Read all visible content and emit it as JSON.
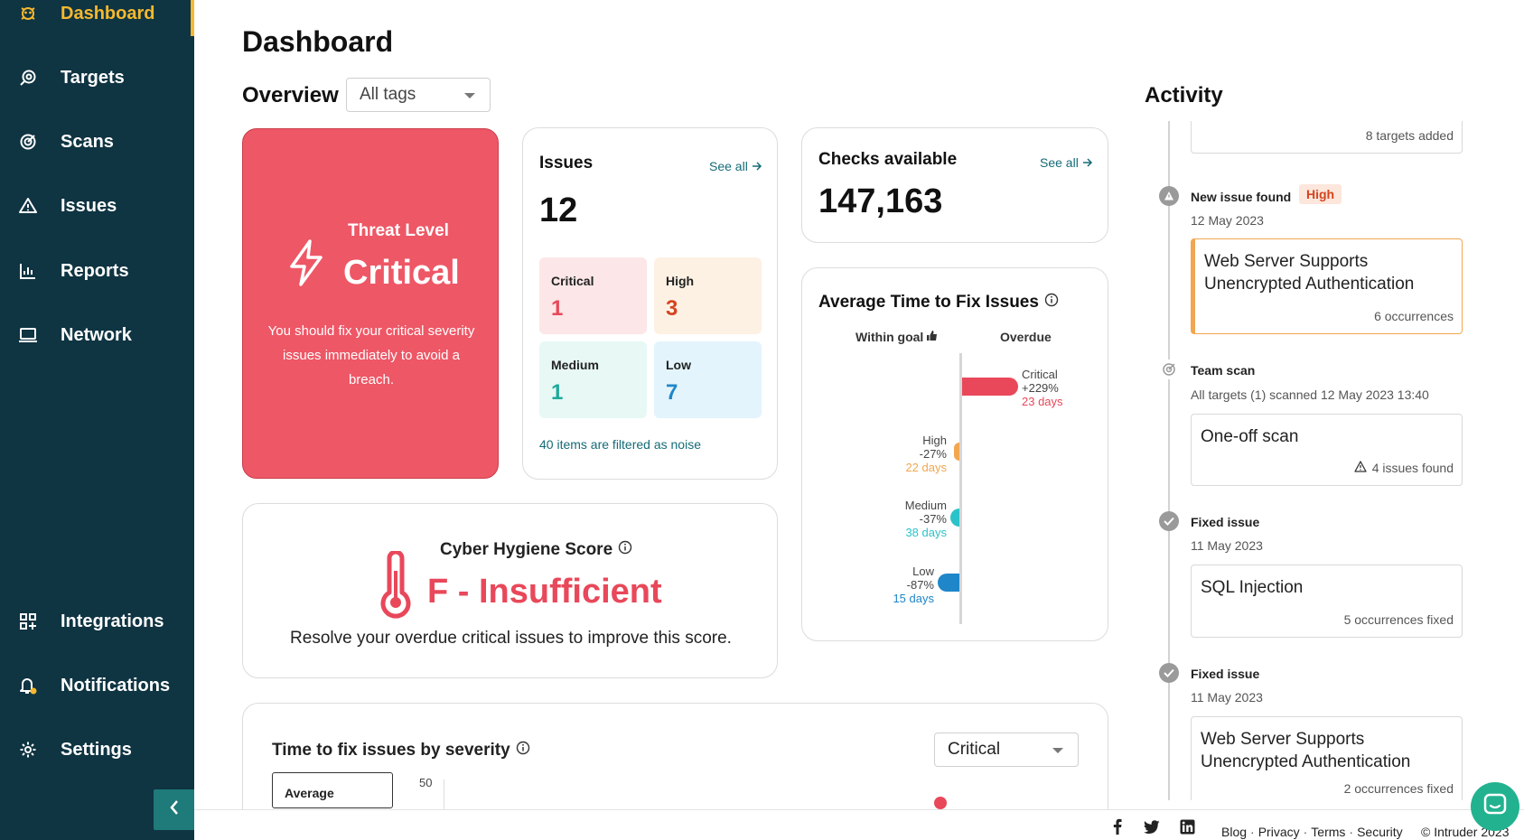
{
  "sidebar": {
    "items": [
      {
        "label": "Dashboard",
        "icon": "dashboard-icon"
      },
      {
        "label": "Targets",
        "icon": "targets-icon"
      },
      {
        "label": "Scans",
        "icon": "scans-icon"
      },
      {
        "label": "Issues",
        "icon": "warning-icon"
      },
      {
        "label": "Reports",
        "icon": "bar-chart-icon"
      },
      {
        "label": "Network",
        "icon": "laptop-icon"
      },
      {
        "label": "Integrations",
        "icon": "integrations-icon"
      },
      {
        "label": "Notifications",
        "icon": "bell-icon"
      },
      {
        "label": "Settings",
        "icon": "gear-icon"
      }
    ]
  },
  "page_title": "Dashboard",
  "overview": {
    "label": "Overview",
    "tags_value": "All tags"
  },
  "threat": {
    "heading": "Threat Level",
    "level": "Critical",
    "description": "You should fix your critical severity issues immediately to avoid a breach."
  },
  "issues": {
    "title": "Issues",
    "see_all": "See all",
    "total": "12",
    "critical_label": "Critical",
    "critical_count": "1",
    "high_label": "High",
    "high_count": "3",
    "medium_label": "Medium",
    "medium_count": "1",
    "low_label": "Low",
    "low_count": "7",
    "noise": "40 items are filtered as noise"
  },
  "checks": {
    "title": "Checks available",
    "see_all": "See all",
    "total": "147,163"
  },
  "avg_fix": {
    "title": "Average Time to Fix Issues",
    "within_goal": "Within goal",
    "overdue": "Overdue",
    "rows": [
      {
        "name": "Critical",
        "pct": "+229%",
        "days": "23 days"
      },
      {
        "name": "High",
        "pct": "-27%",
        "days": "22 days"
      },
      {
        "name": "Medium",
        "pct": "-37%",
        "days": "38 days"
      },
      {
        "name": "Low",
        "pct": "-87%",
        "days": "15 days"
      }
    ]
  },
  "hygiene": {
    "title": "Cyber Hygiene Score",
    "score": "F - Insufficient",
    "description": "Resolve your overdue critical issues to improve this score."
  },
  "time_to_fix": {
    "title": "Time to fix issues by severity",
    "severity_value": "Critical",
    "tab_label": "Average",
    "y_tick": "50"
  },
  "activity": {
    "title": "Activity",
    "card0_meta": "8 targets added",
    "event1": "New issue found",
    "event1_badge": "High",
    "event1_date": "12 May 2023",
    "card1_title": "Web Server Supports Unencrypted Authentication",
    "card1_meta": "6 occurrences",
    "event2": "Team scan",
    "event2_date": "All targets (1) scanned 12 May 2023 13:40",
    "card2_title": "One-off scan",
    "card2_meta": "4 issues found",
    "event3": "Fixed issue",
    "event3_date": "11 May 2023",
    "card3_title": "SQL Injection",
    "card3_meta": "5 occurrences fixed",
    "event4": "Fixed issue",
    "event4_date": "11 May 2023",
    "card4_title": "Web Server Supports Unencrypted Authentication",
    "card4_meta": "2 occurrences fixed"
  },
  "footer": {
    "blog": "Blog",
    "privacy": "Privacy",
    "terms": "Terms",
    "security": "Security",
    "copyright": "Intruder 2023"
  },
  "colors": {
    "sidebar_bg": "#0f3442",
    "accent_yellow": "#f5b82e",
    "critical": "#e8485a",
    "high": "#f2a650",
    "medium": "#2bc3c9",
    "low": "#1f86c9"
  }
}
